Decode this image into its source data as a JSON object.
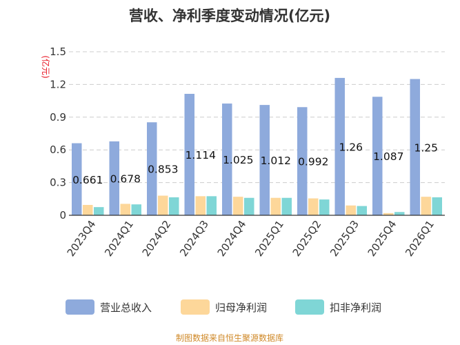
{
  "chart_data": {
    "type": "bar",
    "title": "营收、净利季度变动情况(亿元)",
    "ylabel": "(亿元)",
    "xlabel": "",
    "ylim": [
      0,
      1.5
    ],
    "yticks": [
      0,
      0.3,
      0.6,
      0.9,
      1.2,
      1.5
    ],
    "ytick_labels": [
      "0",
      "0.3",
      "0.6",
      "0.9",
      "1.2",
      "1.5"
    ],
    "grid": true,
    "legend_position": "bottom",
    "categories": [
      "2023Q4",
      "2024Q1",
      "2024Q2",
      "2024Q3",
      "2024Q4",
      "2025Q1",
      "2025Q2",
      "2025Q3",
      "2025Q4",
      "2026Q1"
    ],
    "series": [
      {
        "name": "营业总收入",
        "color": "#8eaadc",
        "values": [
          0.661,
          0.678,
          0.853,
          1.114,
          1.025,
          1.012,
          0.992,
          1.26,
          1.087,
          1.25
        ]
      },
      {
        "name": "归母净利润",
        "color": "#fdd79a",
        "values": [
          0.095,
          0.105,
          0.18,
          0.175,
          0.17,
          0.16,
          0.155,
          0.09,
          0.02,
          0.17
        ]
      },
      {
        "name": "扣非净利润",
        "color": "#7fd6d6",
        "values": [
          0.075,
          0.1,
          0.165,
          0.175,
          0.16,
          0.16,
          0.145,
          0.085,
          0.03,
          0.165
        ]
      }
    ],
    "data_labels": [
      "0.661",
      "0.678",
      "0.853",
      "1.114",
      "1.025",
      "1.012",
      "0.992",
      "1.26",
      "1.087",
      "1.25"
    ]
  },
  "source": "制图数据来自恒生聚源数据库"
}
